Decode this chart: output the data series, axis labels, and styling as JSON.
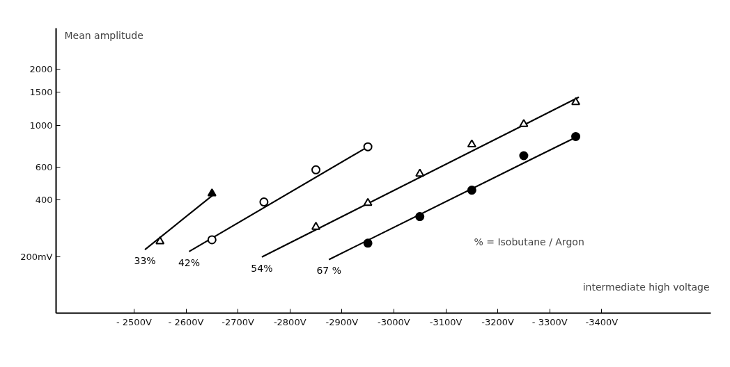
{
  "chart_data": {
    "type": "scatter",
    "xlabel": "intermediate high voltage",
    "ylabel": "Mean amplitude",
    "xlim": [
      -2350,
      -3610
    ],
    "ylim": [
      100,
      3300
    ],
    "log": "y",
    "grid": false,
    "xticks": [
      {
        "value": -2500,
        "label": "- 2500V"
      },
      {
        "value": -2600,
        "label": "- 2600V"
      },
      {
        "value": -2700,
        "label": "-2700V"
      },
      {
        "value": -2800,
        "label": "-2800V"
      },
      {
        "value": -2900,
        "label": "-2900V"
      },
      {
        "value": -3000,
        "label": "-3000V"
      },
      {
        "value": -3100,
        "label": "-3100V"
      },
      {
        "value": -3200,
        "label": "-3200V"
      },
      {
        "value": -3300,
        "label": "- 3300V"
      },
      {
        "value": -3400,
        "label": "-3400V"
      }
    ],
    "yticks": [
      {
        "value": 200,
        "label": "200mV"
      },
      400,
      600,
      1000,
      1500,
      2000
    ],
    "annotations": [
      "% = Isobutane / Argon"
    ],
    "series": [
      {
        "type": "line",
        "name": "33%",
        "color": "#000000",
        "marker": "none",
        "x": [
          -2521,
          -2651
        ],
        "values": [
          218,
          424
        ]
      },
      {
        "type": "line",
        "name": "42%",
        "color": "#000000",
        "marker": "none",
        "x": [
          -2606,
          -2950
        ],
        "values": [
          213,
          770
        ]
      },
      {
        "type": "line",
        "name": "54%",
        "color": "#000000",
        "marker": "none",
        "x": [
          -2746,
          -3356
        ],
        "values": [
          199,
          1415
        ]
      },
      {
        "type": "line",
        "name": "67 %",
        "color": "#000000",
        "marker": "none",
        "x": [
          -2875,
          -3353
        ],
        "values": [
          193,
          873
        ]
      },
      {
        "color": "#ffffff",
        "marker": "triangle",
        "x": [
          -2550
        ],
        "values": [
          241
        ]
      },
      {
        "color": "#000000",
        "marker": "triangle",
        "x": [
          -2650
        ],
        "values": [
          434
        ]
      },
      {
        "color": "#ffffff",
        "marker": "circle",
        "x": [
          -2650,
          -2750,
          -2850,
          -2950
        ],
        "values": [
          246,
          391,
          580,
          770
        ]
      },
      {
        "color": "#ffffff",
        "marker": "triangle",
        "x": [
          -2850,
          -2950,
          -3050,
          -3150,
          -3250,
          -3350
        ],
        "values": [
          288,
          386,
          553,
          792,
          1016,
          1330
        ]
      },
      {
        "color": "#000000",
        "marker": "circle",
        "x": [
          -2950,
          -3050,
          -3150,
          -3250,
          -3350
        ],
        "values": [
          236,
          327,
          452,
          690,
          873
        ]
      }
    ]
  }
}
